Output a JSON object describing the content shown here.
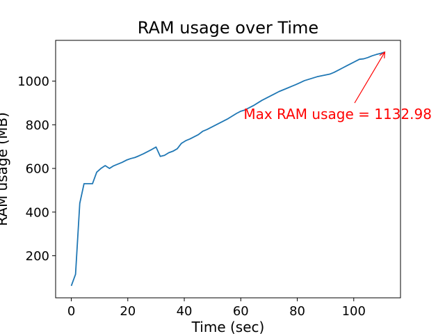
{
  "chart_data": {
    "type": "line",
    "title": "RAM usage over Time",
    "xlabel": "Time (sec)",
    "ylabel": "RAM usage (MB)",
    "xlim": [
      -5.55,
      116.55
    ],
    "ylim": [
      7.3,
      1186.7
    ],
    "xticks": [
      0,
      20,
      40,
      60,
      80,
      100
    ],
    "yticks": [
      200,
      400,
      600,
      800,
      1000
    ],
    "grid": false,
    "colors": {
      "line": "#1f77b4",
      "annotation": "#ff0000",
      "axes": "#000000"
    },
    "series": [
      {
        "x": [
          0,
          1.5,
          3,
          4.5,
          6,
          7.5,
          9,
          10.5,
          12,
          13.5,
          15,
          16.5,
          18,
          19.5,
          21,
          22.5,
          24,
          25.5,
          27,
          28.5,
          30,
          31.5,
          33,
          34.5,
          36,
          37.5,
          39,
          40.5,
          42,
          43.5,
          45,
          46.5,
          48,
          49.5,
          51,
          52.5,
          54,
          55.5,
          57,
          58.5,
          60,
          61.5,
          63,
          64.5,
          66,
          67.5,
          69,
          70.5,
          72,
          73.5,
          75,
          76.5,
          78,
          79.5,
          81,
          82.5,
          84,
          85.5,
          87,
          88.5,
          90,
          91.5,
          93,
          94.5,
          96,
          97.5,
          99,
          100.5,
          102,
          103.5,
          105,
          106.5,
          108,
          109.5,
          111
        ],
        "values": [
          62,
          115,
          440,
          530,
          530,
          530,
          583,
          600,
          613,
          600,
          612,
          620,
          628,
          638,
          645,
          650,
          658,
          667,
          677,
          687,
          698,
          655,
          660,
          672,
          679,
          690,
          715,
          727,
          735,
          745,
          755,
          770,
          778,
          788,
          798,
          808,
          818,
          828,
          840,
          852,
          862,
          868,
          878,
          888,
          900,
          912,
          922,
          932,
          942,
          952,
          960,
          968,
          976,
          984,
          993,
          1002,
          1008,
          1014,
          1020,
          1024,
          1028,
          1032,
          1040,
          1050,
          1060,
          1070,
          1080,
          1090,
          1100,
          1102,
          1108,
          1116,
          1122,
          1127,
          1132.98
        ]
      }
    ],
    "annotation": {
      "text": "Max RAM usage = 1132.98",
      "target": [
        111,
        1132.98
      ],
      "text_anchor_point": [
        61,
        840
      ]
    }
  }
}
